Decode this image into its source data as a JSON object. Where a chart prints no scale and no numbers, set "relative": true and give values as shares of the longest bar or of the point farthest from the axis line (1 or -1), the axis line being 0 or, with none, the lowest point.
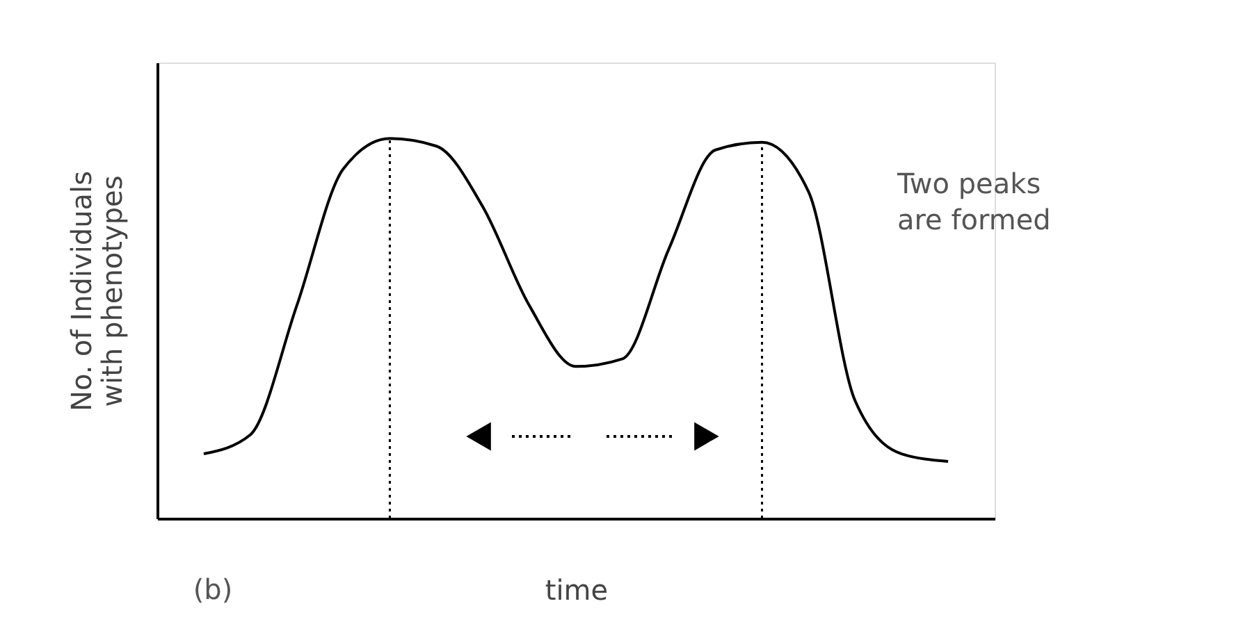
{
  "chart_data": {
    "type": "line",
    "relative": true,
    "xlabel": "time",
    "ylabel": "No. of Individuals with phenotypes",
    "categories": [
      null,
      null,
      null,
      null,
      null,
      null,
      null,
      null,
      null,
      null,
      null,
      null,
      null,
      null,
      null,
      null,
      null
    ],
    "series": [
      {
        "color": "#000000",
        "values": [
          0.17,
          0.22,
          0.56,
          0.92,
          1,
          0.98,
          0.82,
          0.56,
          0.4,
          0.42,
          0.71,
          0.97,
          0.99,
          0.86,
          0.31,
          0.17,
          0.15
        ]
      }
    ],
    "annotations": [
      "Two peaks are formed",
      "(b)"
    ],
    "tick_labels": false,
    "grid": false,
    "marker": "none",
    "line_style": "solid"
  }
}
